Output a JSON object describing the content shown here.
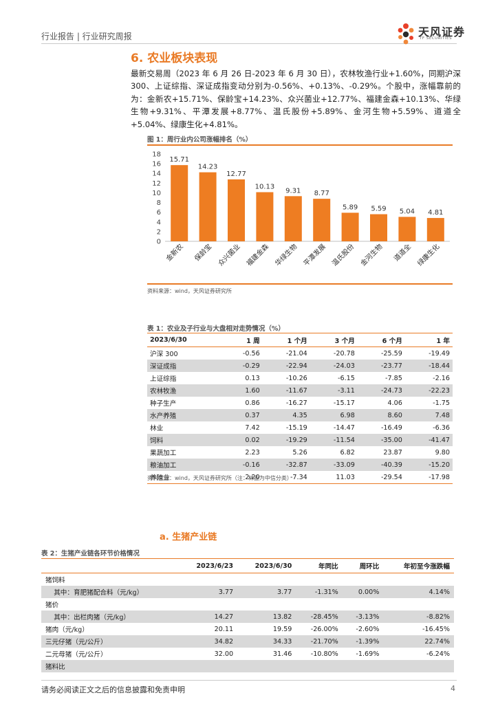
{
  "header": {
    "report_type": "行业报告 | 行业研究周报",
    "logo_cn": "天风证券",
    "logo_en": "TF SECURITIES"
  },
  "section": {
    "title": "6. 农业板块表现",
    "paragraph": "最新交易周（2023 年 6 月 26 日-2023 年 6 月 30 日），农林牧渔行业+1.60%，同期沪深 300、上证综指、深证成指变动分别为-0.56%、+0.13%、-0.29%。个股中，涨幅靠前的为：金新农+15.71%、保龄宝+14.23%、众兴菌业+12.77%、福建金森+10.13%、华绿生物+9.31%、平潭发展+8.77%、温氏股份+5.89%、金河生物+5.59%、道道全+5.04%、绿康生化+4.81%。"
  },
  "figure1": {
    "title": "图 1：周行业内公司涨幅排名（%）",
    "source": "资料来源：wind，天风证券研究所"
  },
  "chart_data": {
    "type": "bar",
    "categories": [
      "金新农",
      "保龄宝",
      "众兴菌业",
      "福建金森",
      "华绿生物",
      "平潭发展",
      "温氏股份",
      "金河生物",
      "道道全",
      "绿康生化"
    ],
    "values": [
      15.71,
      14.23,
      12.77,
      10.13,
      9.31,
      8.77,
      5.89,
      5.59,
      5.04,
      4.81
    ],
    "labels": [
      "15.71",
      "14.23",
      "12.77",
      "10.13",
      "9.31",
      "8.77",
      "5.89",
      "5.59",
      "5.04",
      "4.81"
    ],
    "yticks": [
      "0",
      "2",
      "4",
      "6",
      "8",
      "10",
      "12",
      "14",
      "16",
      "18"
    ],
    "ylim": [
      0,
      18
    ],
    "title": "图 1：周行业内公司涨幅排名（%）",
    "color": "#ee7d22"
  },
  "table1": {
    "title": "表 1：农业及子行业与大盘相对走势情况（%）",
    "headers": [
      "2023/6/30",
      "1 周",
      "1 个月",
      "3 个月",
      "6 个月",
      "1 年"
    ],
    "rows": [
      [
        "沪深 300",
        "-0.56",
        "-21.04",
        "-20.78",
        "-25.59",
        "-19.49"
      ],
      [
        "深证成指",
        "-0.29",
        "-22.94",
        "-24.03",
        "-23.77",
        "-18.44"
      ],
      [
        "上证综指",
        "0.13",
        "-10.26",
        "-6.15",
        "-7.85",
        "-2.16"
      ],
      [
        "农林牧渔",
        "1.60",
        "-11.67",
        "-3.11",
        "-24.73",
        "-22.23"
      ],
      [
        "种子生产",
        "0.86",
        "-16.27",
        "-15.17",
        "4.06",
        "-1.75"
      ],
      [
        "水产养殖",
        "0.37",
        "4.35",
        "6.98",
        "8.60",
        "7.48"
      ],
      [
        "林业",
        "7.42",
        "-15.19",
        "-14.47",
        "-16.49",
        "-6.36"
      ],
      [
        "饲料",
        "0.02",
        "-19.29",
        "-11.54",
        "-35.00",
        "-41.47"
      ],
      [
        "果蔬加工",
        "2.23",
        "5.26",
        "6.82",
        "23.87",
        "9.80"
      ],
      [
        "粮油加工",
        "-0.16",
        "-32.87",
        "-33.09",
        "-40.39",
        "-15.20"
      ],
      [
        "养殖业",
        "2.20",
        "-7.34",
        "11.03",
        "-29.54",
        "-17.98"
      ]
    ],
    "source": "资料来源：wind，天风证券研究所（注：林业为中信分类）"
  },
  "subsection": {
    "title": "a.  生猪产业链"
  },
  "table2": {
    "title": "表 2：生猪产业链各环节价格情况",
    "headers": [
      "",
      "2023/6/23",
      "2023/6/30",
      "年同比",
      "周环比",
      "年初至今涨跌幅"
    ],
    "rows": [
      [
        "猪饲料",
        "",
        "",
        "",
        "",
        ""
      ],
      [
        "    其中：育肥猪配合料（元/kg）",
        "3.77",
        "3.77",
        "-1.31%",
        "0.00%",
        "4.14%"
      ],
      [
        "猪价",
        "",
        "",
        "",
        "",
        ""
      ],
      [
        "    其中：出栏肉猪（元/kg）",
        "14.27",
        "13.82",
        "-28.45%",
        "-3.13%",
        "-8.82%"
      ],
      [
        "猪肉（元/kg）",
        "20.11",
        "19.59",
        "-26.00%",
        "-2.60%",
        "-16.45%"
      ],
      [
        "三元仔猪（元/公斤）",
        "34.82",
        "34.33",
        "-21.70%",
        "-1.39%",
        "22.74%"
      ],
      [
        "二元母猪（元/公斤）",
        "32.00",
        "31.46",
        "-10.80%",
        "-1.69%",
        "-6.24%"
      ],
      [
        "猪料比",
        "",
        "",
        "",
        "",
        ""
      ]
    ]
  },
  "footer": {
    "disclaimer": "请务必阅读正文之后的信息披露和免责申明",
    "page": "4"
  }
}
